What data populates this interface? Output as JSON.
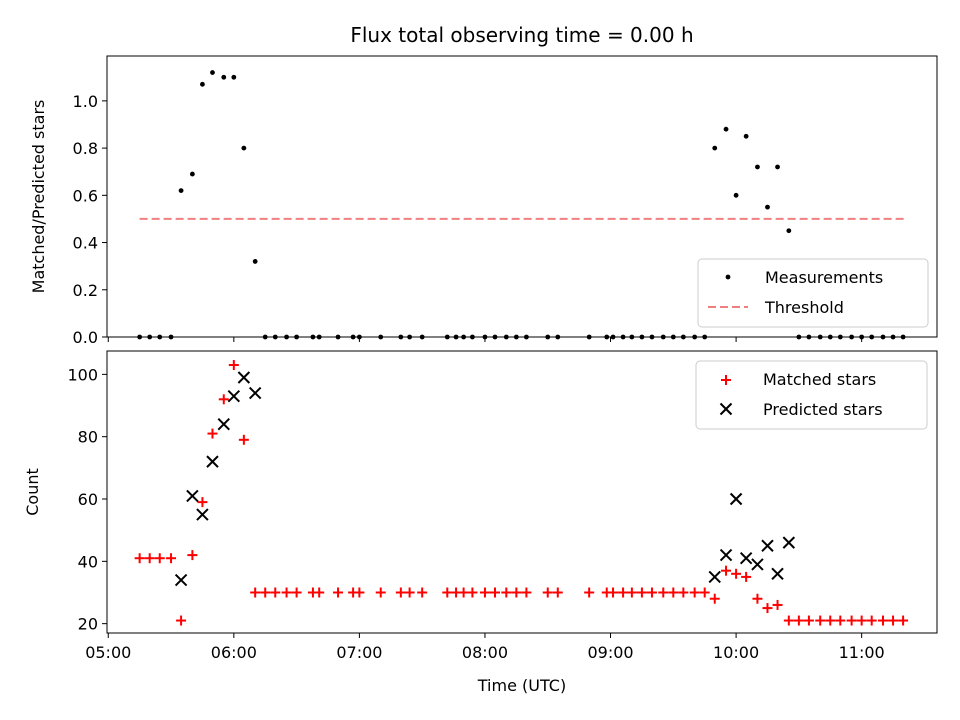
{
  "chart_data": {
    "title": "Flux total observing time = 0.00 h",
    "xlabel": "Time (UTC)",
    "x_unit": "hours UTC",
    "x_ticks": [
      {
        "value": 5,
        "label": "05:00"
      },
      {
        "value": 6,
        "label": "06:00"
      },
      {
        "value": 7,
        "label": "07:00"
      },
      {
        "value": 8,
        "label": "08:00"
      },
      {
        "value": 9,
        "label": "09:00"
      },
      {
        "value": 10,
        "label": "10:00"
      },
      {
        "value": 11,
        "label": "11:00"
      }
    ],
    "xlim": [
      4.99,
      11.6
    ],
    "colors": {
      "matched": "#ff0000",
      "predicted": "#000000",
      "threshold": "#f08080",
      "measurements": "#000000"
    },
    "panels": [
      {
        "type": "scatter",
        "ylabel": "Matched/Predicted stars",
        "ylim": [
          0,
          1.19
        ],
        "y_ticks": [
          0.0,
          0.2,
          0.4,
          0.6,
          0.8,
          1.0
        ],
        "y_tick_labels": [
          "0.0",
          "0.2",
          "0.4",
          "0.6",
          "0.8",
          "1.0"
        ],
        "legend": "lower-right",
        "series": [
          {
            "name": "Measurements",
            "marker": "dot",
            "points": [
              [
                5.25,
                0
              ],
              [
                5.33,
                0
              ],
              [
                5.41,
                0
              ],
              [
                5.5,
                0
              ],
              [
                5.58,
                0.62
              ],
              [
                5.67,
                0.69
              ],
              [
                5.75,
                1.07
              ],
              [
                5.83,
                1.12
              ],
              [
                5.92,
                1.1
              ],
              [
                6.0,
                1.1
              ],
              [
                6.08,
                0.8
              ],
              [
                6.17,
                0.32
              ],
              [
                6.25,
                0
              ],
              [
                6.33,
                0
              ],
              [
                6.42,
                0
              ],
              [
                6.5,
                0
              ],
              [
                6.63,
                0
              ],
              [
                6.68,
                0
              ],
              [
                6.83,
                0
              ],
              [
                6.95,
                0
              ],
              [
                7.0,
                0
              ],
              [
                7.17,
                0
              ],
              [
                7.33,
                0
              ],
              [
                7.4,
                0
              ],
              [
                7.5,
                0
              ],
              [
                7.7,
                0
              ],
              [
                7.77,
                0
              ],
              [
                7.83,
                0
              ],
              [
                7.9,
                0
              ],
              [
                8.0,
                0
              ],
              [
                8.08,
                0
              ],
              [
                8.17,
                0
              ],
              [
                8.25,
                0
              ],
              [
                8.33,
                0
              ],
              [
                8.5,
                0
              ],
              [
                8.58,
                0
              ],
              [
                8.83,
                0
              ],
              [
                8.97,
                0
              ],
              [
                9.02,
                0
              ],
              [
                9.1,
                0
              ],
              [
                9.17,
                0
              ],
              [
                9.25,
                0
              ],
              [
                9.33,
                0
              ],
              [
                9.42,
                0
              ],
              [
                9.5,
                0
              ],
              [
                9.58,
                0
              ],
              [
                9.67,
                0
              ],
              [
                9.75,
                0
              ],
              [
                9.83,
                0.8
              ],
              [
                9.92,
                0.88
              ],
              [
                10.0,
                0.6
              ],
              [
                10.08,
                0.85
              ],
              [
                10.17,
                0.72
              ],
              [
                10.25,
                0.55
              ],
              [
                10.33,
                0.72
              ],
              [
                10.42,
                0.45
              ],
              [
                10.5,
                0
              ],
              [
                10.58,
                0
              ],
              [
                10.67,
                0
              ],
              [
                10.75,
                0
              ],
              [
                10.83,
                0
              ],
              [
                10.92,
                0
              ],
              [
                11.0,
                0
              ],
              [
                11.08,
                0
              ],
              [
                11.17,
                0
              ],
              [
                11.25,
                0
              ],
              [
                11.33,
                0
              ]
            ]
          },
          {
            "name": "Threshold",
            "marker": "dashed-line",
            "points": [
              [
                5.25,
                0.5
              ],
              [
                11.35,
                0.5
              ]
            ]
          }
        ]
      },
      {
        "type": "scatter",
        "ylabel": "Count",
        "ylim": [
          17,
          107.5
        ],
        "y_ticks": [
          20,
          40,
          60,
          80,
          100
        ],
        "y_tick_labels": [
          "20",
          "40",
          "60",
          "80",
          "100"
        ],
        "legend": "upper-right",
        "series": [
          {
            "name": "Matched stars",
            "marker": "plus",
            "points": [
              [
                5.25,
                41
              ],
              [
                5.33,
                41
              ],
              [
                5.41,
                41
              ],
              [
                5.5,
                41
              ],
              [
                5.58,
                21
              ],
              [
                5.67,
                42
              ],
              [
                5.75,
                59
              ],
              [
                5.83,
                81
              ],
              [
                5.92,
                92
              ],
              [
                6.0,
                103
              ],
              [
                6.08,
                79
              ],
              [
                6.17,
                30
              ],
              [
                6.25,
                30
              ],
              [
                6.33,
                30
              ],
              [
                6.42,
                30
              ],
              [
                6.5,
                30
              ],
              [
                6.63,
                30
              ],
              [
                6.68,
                30
              ],
              [
                6.83,
                30
              ],
              [
                6.95,
                30
              ],
              [
                7.0,
                30
              ],
              [
                7.17,
                30
              ],
              [
                7.33,
                30
              ],
              [
                7.4,
                30
              ],
              [
                7.5,
                30
              ],
              [
                7.7,
                30
              ],
              [
                7.77,
                30
              ],
              [
                7.83,
                30
              ],
              [
                7.9,
                30
              ],
              [
                8.0,
                30
              ],
              [
                8.08,
                30
              ],
              [
                8.17,
                30
              ],
              [
                8.25,
                30
              ],
              [
                8.33,
                30
              ],
              [
                8.5,
                30
              ],
              [
                8.58,
                30
              ],
              [
                8.83,
                30
              ],
              [
                8.97,
                30
              ],
              [
                9.02,
                30
              ],
              [
                9.1,
                30
              ],
              [
                9.17,
                30
              ],
              [
                9.25,
                30
              ],
              [
                9.33,
                30
              ],
              [
                9.42,
                30
              ],
              [
                9.5,
                30
              ],
              [
                9.58,
                30
              ],
              [
                9.67,
                30
              ],
              [
                9.75,
                30
              ],
              [
                9.83,
                28
              ],
              [
                9.92,
                37
              ],
              [
                10.0,
                36
              ],
              [
                10.08,
                35
              ],
              [
                10.17,
                28
              ],
              [
                10.25,
                25
              ],
              [
                10.33,
                26
              ],
              [
                10.42,
                21
              ],
              [
                10.5,
                21
              ],
              [
                10.58,
                21
              ],
              [
                10.67,
                21
              ],
              [
                10.75,
                21
              ],
              [
                10.83,
                21
              ],
              [
                10.92,
                21
              ],
              [
                11.0,
                21
              ],
              [
                11.08,
                21
              ],
              [
                11.17,
                21
              ],
              [
                11.25,
                21
              ],
              [
                11.33,
                21
              ]
            ]
          },
          {
            "name": "Predicted stars",
            "marker": "x",
            "points": [
              [
                5.58,
                34
              ],
              [
                5.67,
                61
              ],
              [
                5.75,
                55
              ],
              [
                5.83,
                72
              ],
              [
                5.92,
                84
              ],
              [
                6.0,
                93
              ],
              [
                6.08,
                99
              ],
              [
                6.17,
                94
              ],
              [
                9.83,
                35
              ],
              [
                9.92,
                42
              ],
              [
                10.0,
                60
              ],
              [
                10.08,
                41
              ],
              [
                10.17,
                39
              ],
              [
                10.25,
                45
              ],
              [
                10.33,
                36
              ],
              [
                10.42,
                46
              ]
            ]
          }
        ]
      }
    ]
  }
}
